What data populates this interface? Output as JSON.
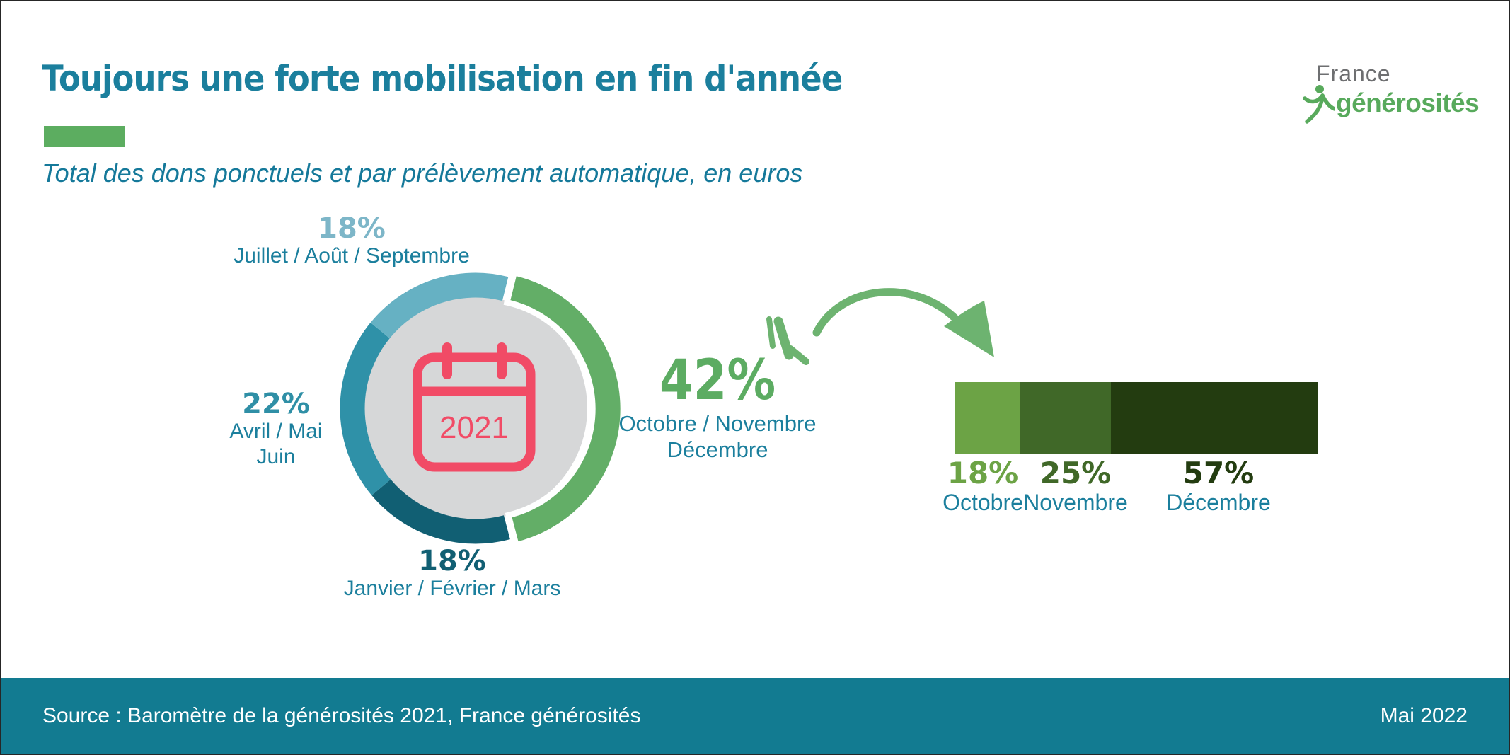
{
  "header": {
    "title": "Toujours une forte mobilisation en fin d'année",
    "subtitle": "Total des dons ponctuels et par prélèvement automatique, en euros"
  },
  "logo": {
    "top": "France",
    "bottom": "générosités"
  },
  "chart_data": [
    {
      "type": "pie",
      "subtype": "exploded-donut",
      "center_year": "2021",
      "start_angle_deg": 14,
      "direction": "clockwise",
      "segments": [
        {
          "label": "Octobre / Novembre / Décembre",
          "value": 42,
          "color": "#63ae67",
          "exploded": true
        },
        {
          "label": "Janvier / Février / Mars",
          "value": 18,
          "color": "#115f73",
          "exploded": false
        },
        {
          "label": "Avril / Mai / Juin",
          "value": 22,
          "color": "#2f91a8",
          "exploded": false
        },
        {
          "label": "Juillet / Août / Septembre",
          "value": 18,
          "color": "#66b1c3",
          "exploded": false
        }
      ]
    },
    {
      "type": "bar",
      "subtype": "stacked-horizontal",
      "categories": [
        "Octobre",
        "Novembre",
        "Décembre"
      ],
      "values": [
        18,
        25,
        57
      ],
      "colors": [
        "#6ca345",
        "#406828",
        "#233c10"
      ],
      "unit": "%"
    }
  ],
  "donut_labels": {
    "q3": {
      "pct": "18%",
      "months": "Juillet / Août / Septembre"
    },
    "q2": {
      "pct": "22%",
      "line1": "Avril / Mai",
      "line2": "Juin"
    },
    "q1": {
      "pct": "18%",
      "months": "Janvier / Février / Mars"
    },
    "q4": {
      "pct": "42%",
      "line1": "Octobre / Novembre",
      "line2": "Décembre"
    }
  },
  "bar_labels": [
    {
      "pct": "18%",
      "month": "Octobre"
    },
    {
      "pct": "25%",
      "month": "Novembre"
    },
    {
      "pct": "57%",
      "month": "Décembre"
    }
  ],
  "footer": {
    "source": "Source : Baromètre de la générosités 2021, France générosités",
    "date": "Mai 2022"
  }
}
